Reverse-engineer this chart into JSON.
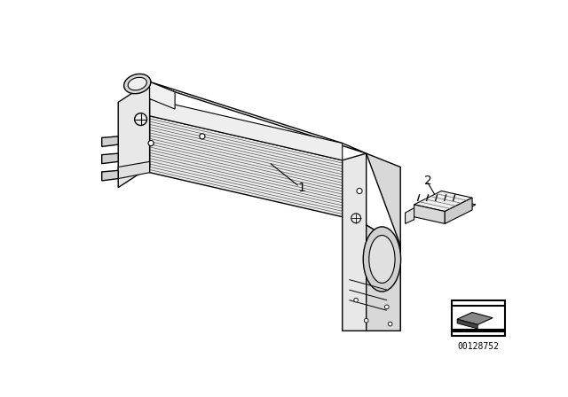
{
  "background_color": "#ffffff",
  "fig_width": 6.4,
  "fig_height": 4.48,
  "dpi": 100,
  "part_label1": "1",
  "part_label2": "2",
  "diagram_number": "00128752",
  "line_color": "#000000",
  "face_top_color": "#f2f2f2",
  "face_front_color": "#e0e0e0",
  "face_fin_color": "#e8e8e8",
  "face_endcap_color": "#e8e8e8",
  "fin_line_color": "#666666"
}
